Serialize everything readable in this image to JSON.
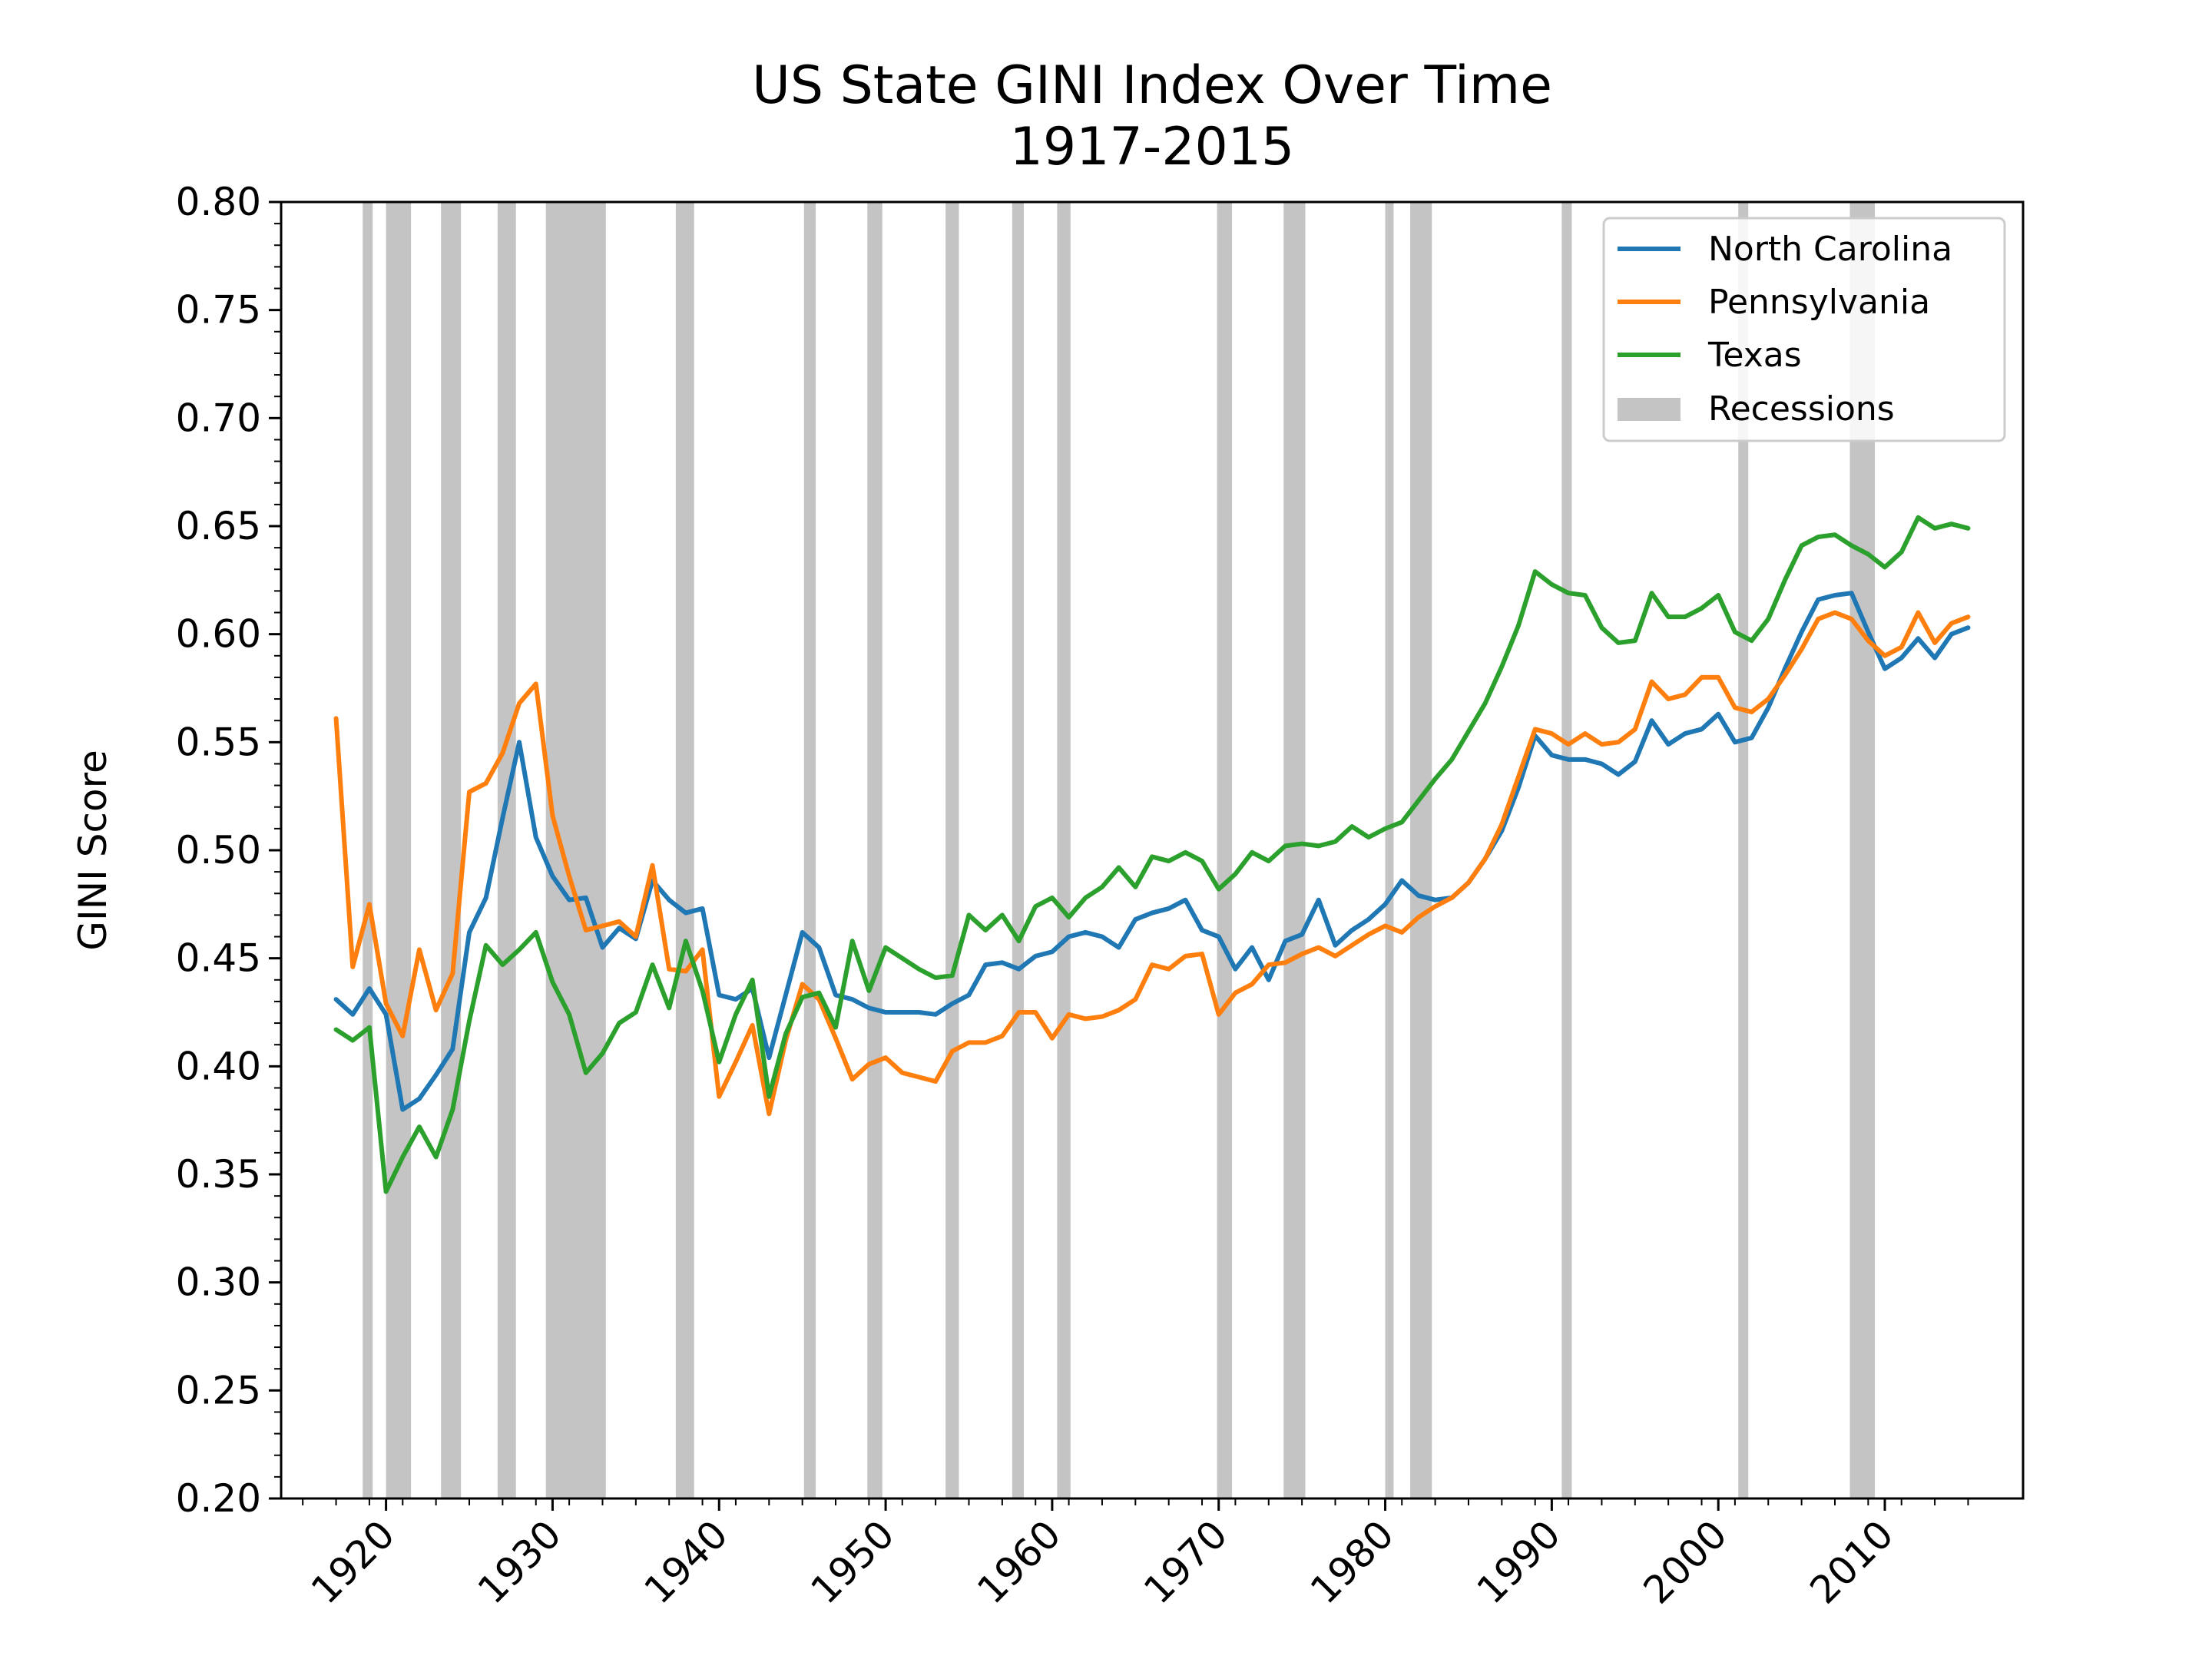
{
  "chart_data": {
    "type": "line",
    "title": "US State GINI Index Over Time",
    "subtitle": "1917-2015",
    "xlabel": "",
    "ylabel": "GINI Score",
    "xlim": [
      1913.7,
      1918.3
    ],
    "ylim": [
      0.2,
      0.8
    ],
    "y_ticks": [
      "0.20",
      "0.25",
      "0.30",
      "0.35",
      "0.40",
      "0.45",
      "0.50",
      "0.55",
      "0.60",
      "0.65",
      "0.70",
      "0.75",
      "0.80"
    ],
    "x_ticks": [
      "1920",
      "1930",
      "1940",
      "1950",
      "1960",
      "1970",
      "1980",
      "1990",
      "2000",
      "2010"
    ],
    "grid": false,
    "legend_position": "top-right",
    "x_start": 1917,
    "recessions": [
      [
        1918.6,
        1919.2
      ],
      [
        1920.0,
        1921.5
      ],
      [
        1923.3,
        1924.5
      ],
      [
        1926.7,
        1927.8
      ],
      [
        1929.6,
        1933.2
      ],
      [
        1937.4,
        1938.5
      ],
      [
        1945.1,
        1945.8
      ],
      [
        1948.9,
        1949.8
      ],
      [
        1953.6,
        1954.4
      ],
      [
        1957.6,
        1958.3
      ],
      [
        1960.3,
        1961.1
      ],
      [
        1969.9,
        1970.8
      ],
      [
        1973.9,
        1975.2
      ],
      [
        1980.0,
        1980.5
      ],
      [
        1981.5,
        1982.8
      ],
      [
        1990.6,
        1991.2
      ],
      [
        2001.2,
        2001.8
      ],
      [
        2007.9,
        2009.4
      ]
    ],
    "series": [
      {
        "name": "North Carolina",
        "color": "#1f77b4",
        "values": [
          0.431,
          0.424,
          0.436,
          0.424,
          0.38,
          0.385,
          0.396,
          0.408,
          0.462,
          0.478,
          0.515,
          0.55,
          0.506,
          0.488,
          0.477,
          0.478,
          0.455,
          0.464,
          0.459,
          0.486,
          0.477,
          0.471,
          0.473,
          0.433,
          0.431,
          0.436,
          0.404,
          0.433,
          0.462,
          0.455,
          0.433,
          0.431,
          0.427,
          0.425,
          0.425,
          0.425,
          0.424,
          0.429,
          0.433,
          0.447,
          0.448,
          0.445,
          0.451,
          0.453,
          0.46,
          0.462,
          0.46,
          0.455,
          0.468,
          0.471,
          0.473,
          0.477,
          0.463,
          0.46,
          0.445,
          0.455,
          0.44,
          0.458,
          0.461,
          0.477,
          0.456,
          0.463,
          0.468,
          0.475,
          0.486,
          0.479,
          0.477,
          0.478,
          0.485,
          0.496,
          0.509,
          0.529,
          0.553,
          0.544,
          0.542,
          0.542,
          0.54,
          0.535,
          0.541,
          0.56,
          0.549,
          0.554,
          0.556,
          0.563,
          0.55,
          0.552,
          0.566,
          0.584,
          0.601,
          0.616,
          0.618,
          0.619,
          0.601,
          0.584,
          0.589,
          0.598,
          0.589,
          0.6,
          0.603
        ]
      },
      {
        "name": "Pennsylvania",
        "color": "#ff7f0e",
        "values": [
          0.561,
          0.446,
          0.475,
          0.429,
          0.414,
          0.454,
          0.426,
          0.443,
          0.527,
          0.531,
          0.545,
          0.568,
          0.577,
          0.516,
          0.488,
          0.463,
          0.465,
          0.467,
          0.46,
          0.493,
          0.445,
          0.444,
          0.454,
          0.386,
          0.402,
          0.419,
          0.378,
          0.412,
          0.438,
          0.431,
          0.413,
          0.394,
          0.401,
          0.404,
          0.397,
          0.395,
          0.393,
          0.407,
          0.411,
          0.411,
          0.414,
          0.425,
          0.425,
          0.413,
          0.424,
          0.422,
          0.423,
          0.426,
          0.431,
          0.447,
          0.445,
          0.451,
          0.452,
          0.424,
          0.434,
          0.438,
          0.447,
          0.448,
          0.452,
          0.455,
          0.451,
          0.456,
          0.461,
          0.465,
          0.462,
          0.469,
          0.474,
          0.478,
          0.485,
          0.496,
          0.512,
          0.534,
          0.556,
          0.554,
          0.549,
          0.554,
          0.549,
          0.55,
          0.556,
          0.578,
          0.57,
          0.572,
          0.58,
          0.58,
          0.566,
          0.564,
          0.57,
          0.581,
          0.593,
          0.607,
          0.61,
          0.607,
          0.597,
          0.59,
          0.594,
          0.61,
          0.596,
          0.605,
          0.608
        ]
      },
      {
        "name": "Texas",
        "color": "#2ca02c",
        "values": [
          0.417,
          0.412,
          0.418,
          0.342,
          0.358,
          0.372,
          0.358,
          0.38,
          0.421,
          0.456,
          0.447,
          0.454,
          0.462,
          0.439,
          0.424,
          0.397,
          0.406,
          0.42,
          0.425,
          0.447,
          0.427,
          0.458,
          0.435,
          0.402,
          0.424,
          0.44,
          0.386,
          0.415,
          0.432,
          0.434,
          0.418,
          0.458,
          0.435,
          0.455,
          0.45,
          0.445,
          0.441,
          0.442,
          0.47,
          0.463,
          0.47,
          0.458,
          0.474,
          0.478,
          0.469,
          0.478,
          0.483,
          0.492,
          0.483,
          0.497,
          0.495,
          0.499,
          0.495,
          0.482,
          0.489,
          0.499,
          0.495,
          0.502,
          0.503,
          0.502,
          0.504,
          0.511,
          0.506,
          0.51,
          0.513,
          0.523,
          0.533,
          0.542,
          0.555,
          0.568,
          0.585,
          0.604,
          0.629,
          0.623,
          0.619,
          0.618,
          0.603,
          0.596,
          0.597,
          0.619,
          0.608,
          0.608,
          0.612,
          0.618,
          0.601,
          0.597,
          0.607,
          0.625,
          0.641,
          0.645,
          0.646,
          0.641,
          0.637,
          0.631,
          0.638,
          0.654,
          0.649,
          0.651,
          0.649
        ]
      }
    ],
    "legend": [
      "North Carolina",
      "Pennsylvania",
      "Texas",
      "Recessions"
    ],
    "recession_color": "#c4c4c4"
  }
}
